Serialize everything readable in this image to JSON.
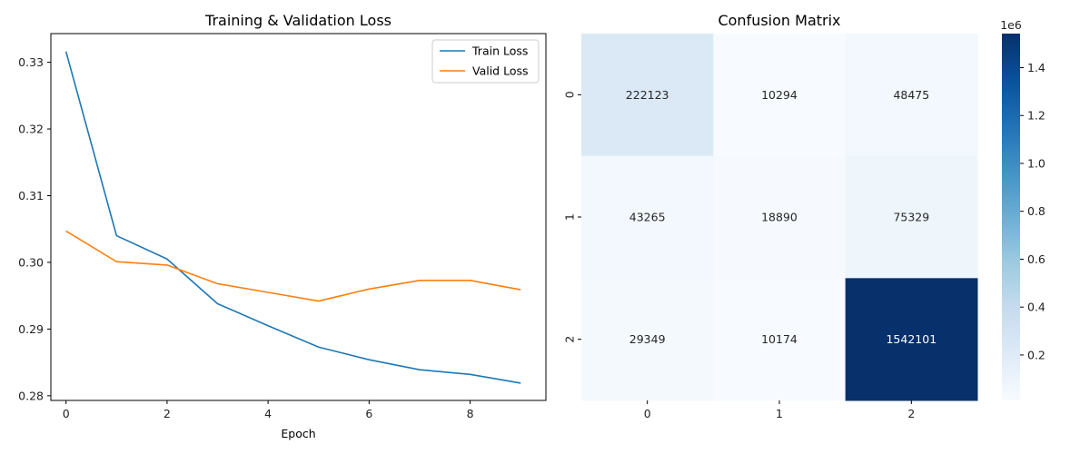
{
  "chart_data": [
    {
      "type": "line",
      "title": "Training & Validation Loss",
      "xlabel": "Epoch",
      "ylabel": "",
      "x": [
        0,
        1,
        2,
        3,
        4,
        5,
        6,
        7,
        8,
        9
      ],
      "xlim": [
        -0.3,
        9.5
      ],
      "ylim": [
        0.2793,
        0.3343
      ],
      "xticks": [
        0,
        2,
        4,
        6,
        8
      ],
      "yticks": [
        0.28,
        0.29,
        0.3,
        0.31,
        0.32,
        0.33
      ],
      "ytick_labels": [
        "0.28",
        "0.29",
        "0.30",
        "0.31",
        "0.32",
        "0.33"
      ],
      "legend_position": "upper-right",
      "series": [
        {
          "name": "Train Loss",
          "color": "#1f77b4",
          "values": [
            0.3316,
            0.304,
            0.3005,
            0.2938,
            0.2905,
            0.2873,
            0.2854,
            0.2839,
            0.2832,
            0.2819
          ]
        },
        {
          "name": "Valid Loss",
          "color": "#ff7f0e",
          "values": [
            0.3047,
            0.3001,
            0.2996,
            0.2968,
            0.2955,
            0.2942,
            0.296,
            0.2973,
            0.2973,
            0.2959
          ]
        }
      ]
    },
    {
      "type": "heatmap",
      "title": "Confusion Matrix",
      "x_categories": [
        "0",
        "1",
        "2"
      ],
      "y_categories": [
        "0",
        "1",
        "2"
      ],
      "values": [
        [
          222123,
          10294,
          48475
        ],
        [
          43265,
          18890,
          75329
        ],
        [
          29349,
          10174,
          1542101
        ]
      ],
      "colormap": "Blues",
      "colorbar": {
        "min": 10174,
        "max": 1542101,
        "ticks": [
          200000,
          400000,
          600000,
          800000,
          1000000,
          1200000,
          1400000
        ],
        "tick_labels": [
          "0.2",
          "0.4",
          "0.6",
          "0.8",
          "1.0",
          "1.2",
          "1.4"
        ],
        "offset_label": "1e6"
      }
    }
  ]
}
